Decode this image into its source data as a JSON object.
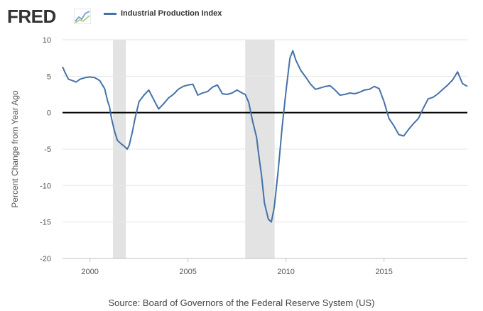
{
  "header": {
    "logo_text": "FRED",
    "logo_mark_icon": "fred-chart-logo-icon",
    "legend_label": "Industrial Production Index"
  },
  "source": "Source: Board of Governors of the Federal Reserve System (US)",
  "chart_data": {
    "type": "line",
    "title": "",
    "xlabel": "",
    "ylabel": "Percent Change from Year Ago",
    "xlim": [
      1998.6,
      2019.25
    ],
    "ylim": [
      -20,
      10
    ],
    "yticks": [
      -20,
      -15,
      -10,
      -5,
      0,
      5,
      10
    ],
    "xticks": [
      2000,
      2005,
      2010,
      2015
    ],
    "grid": "horizontal",
    "legend_position": "top-left",
    "line_color": "#4572a7",
    "recession_color": "#e3e3e3",
    "recessions": [
      [
        2001.17,
        2001.83
      ],
      [
        2007.92,
        2009.42
      ]
    ],
    "series": [
      {
        "name": "Industrial Production Index",
        "x": [
          1998.6,
          1998.75,
          1998.9,
          1999.1,
          1999.3,
          1999.5,
          1999.75,
          2000.0,
          2000.25,
          2000.5,
          2000.75,
          2000.9,
          2001.0,
          2001.1,
          2001.25,
          2001.4,
          2001.6,
          2001.75,
          2001.9,
          2002.0,
          2002.15,
          2002.3,
          2002.5,
          2002.75,
          2003.0,
          2003.25,
          2003.5,
          2003.75,
          2004.0,
          2004.25,
          2004.5,
          2004.75,
          2005.0,
          2005.25,
          2005.5,
          2005.75,
          2006.0,
          2006.25,
          2006.5,
          2006.75,
          2007.0,
          2007.25,
          2007.5,
          2007.75,
          2007.92,
          2008.1,
          2008.3,
          2008.5,
          2008.6,
          2008.75,
          2008.9,
          2009.1,
          2009.25,
          2009.4,
          2009.6,
          2009.8,
          2010.0,
          2010.2,
          2010.35,
          2010.5,
          2010.75,
          2011.0,
          2011.25,
          2011.5,
          2011.75,
          2012.0,
          2012.25,
          2012.5,
          2012.75,
          2013.0,
          2013.25,
          2013.5,
          2013.75,
          2014.0,
          2014.25,
          2014.5,
          2014.75,
          2015.0,
          2015.25,
          2015.5,
          2015.75,
          2016.0,
          2016.25,
          2016.5,
          2016.75,
          2017.0,
          2017.25,
          2017.5,
          2017.75,
          2018.0,
          2018.25,
          2018.5,
          2018.75,
          2019.0,
          2019.25
        ],
        "values": [
          6.3,
          5.4,
          4.6,
          4.4,
          4.2,
          4.6,
          4.8,
          4.9,
          4.8,
          4.4,
          3.3,
          1.6,
          0.8,
          -0.8,
          -2.5,
          -3.8,
          -4.3,
          -4.6,
          -5.0,
          -4.5,
          -2.8,
          -0.8,
          1.5,
          2.4,
          3.1,
          1.8,
          0.5,
          1.2,
          2.0,
          2.5,
          3.2,
          3.6,
          3.8,
          3.9,
          2.4,
          2.7,
          2.9,
          3.5,
          3.8,
          2.6,
          2.5,
          2.7,
          3.1,
          2.7,
          2.5,
          1.4,
          -1.2,
          -3.4,
          -5.6,
          -8.6,
          -12.4,
          -14.6,
          -15.0,
          -13.0,
          -8.0,
          -2.0,
          3.0,
          7.5,
          8.5,
          7.2,
          5.8,
          4.9,
          3.9,
          3.2,
          3.4,
          3.6,
          3.7,
          3.1,
          2.4,
          2.5,
          2.7,
          2.6,
          2.8,
          3.1,
          3.2,
          3.6,
          3.3,
          1.5,
          -0.8,
          -1.8,
          -3.0,
          -3.2,
          -2.3,
          -1.5,
          -0.8,
          0.6,
          1.9,
          2.1,
          2.6,
          3.2,
          3.8,
          4.5,
          5.6,
          4.0,
          3.6
        ]
      }
    ]
  }
}
